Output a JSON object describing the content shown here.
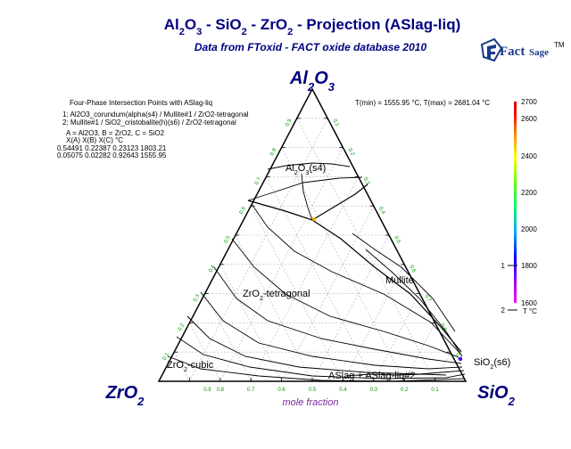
{
  "title": {
    "parts": [
      {
        "text": "Al",
        "sub": false
      },
      {
        "text": "2",
        "sub": true
      },
      {
        "text": "O",
        "sub": false
      },
      {
        "text": "3",
        "sub": true
      },
      {
        "text": " - SiO",
        "sub": false
      },
      {
        "text": "2",
        "sub": true
      },
      {
        "text": " - ZrO",
        "sub": false
      },
      {
        "text": "2",
        "sub": true
      },
      {
        "text": " -  Projection (ASlag-liq)",
        "sub": false
      }
    ]
  },
  "subtitle": "Data from FToxid - FACT oxide database 2010",
  "logo": {
    "word1": "Fact",
    "word2": "Sage",
    "mark": "TM"
  },
  "apex": {
    "top": [
      {
        "text": "Al",
        "sub": false
      },
      {
        "text": "2",
        "sub": true
      },
      {
        "text": "O",
        "sub": false
      },
      {
        "text": "3",
        "sub": true
      }
    ],
    "left": [
      {
        "text": "ZrO",
        "sub": false
      },
      {
        "text": "2",
        "sub": true
      }
    ],
    "right": [
      {
        "text": "SiO",
        "sub": false
      },
      {
        "text": "2",
        "sub": true
      }
    ]
  },
  "info": {
    "heading": "Four-Phase Intersection Points with ASlag-liq",
    "points": [
      "1:  Al2O3_corundum(alpha(s4) / Mullite#1 / ZrO2-tetragonal",
      "2:  Mullite#1 / SiO2_cristobalite(h)(s6) / ZrO2-tetragonal"
    ],
    "legend_line": "A = Al2O3,  B = ZrO2,  C = SiO2",
    "table_header": "X(A)        X(B)       X(C)        °C",
    "rows": [
      "0.54491  0.22387  0.23123  1803.21",
      "0.05075  0.02282  0.92643  1555.95"
    ]
  },
  "temp_range": "T(min) = 1555.95 °C,  T(max) = 2681.04 °C",
  "colorbar": {
    "ticks": [
      "2700",
      "2600",
      "2400",
      "2200",
      "2000",
      "1800",
      "1600"
    ],
    "unit": "T °C",
    "markers": [
      {
        "label": "1",
        "value": "1803.21"
      },
      {
        "label": "2",
        "value": "1555.95"
      }
    ],
    "colors": [
      "#ff00ff",
      "#9900ff",
      "#0000ff",
      "#00aaff",
      "#00ff66",
      "#66ff00",
      "#ffff00",
      "#ff8800",
      "#ff0000",
      "#cc0000"
    ]
  },
  "fields": {
    "al2o3": [
      {
        "text": "Al",
        "sub": false
      },
      {
        "text": "2",
        "sub": true
      },
      {
        "text": "O",
        "sub": false
      },
      {
        "text": "3",
        "sub": true
      },
      {
        "text": "(s4)",
        "sub": false
      }
    ],
    "zro2_tet": [
      {
        "text": "ZrO",
        "sub": false
      },
      {
        "text": "2",
        "sub": true
      },
      {
        "text": "-tetragonal",
        "sub": false
      }
    ],
    "mullite": "Mullite",
    "zro2_cubic": [
      {
        "text": "ZrO",
        "sub": false
      },
      {
        "text": "2",
        "sub": true
      },
      {
        "text": "-cubic",
        "sub": false
      }
    ],
    "sio2": [
      {
        "text": "SiO",
        "sub": false
      },
      {
        "text": "2",
        "sub": true
      },
      {
        "text": "(s6)",
        "sub": false
      }
    ],
    "aslag": "ASlag + ASlag-liq#2"
  },
  "axis_label": "mole fraction",
  "bottom_ticks": [
    "0.9",
    "0.8",
    "0.7",
    "0.6",
    "0.5",
    "0.4",
    "0.3",
    "0.2",
    "0.1"
  ],
  "left_ticks": [
    "0.9",
    "0.8",
    "0.7",
    "0.6",
    "0.5",
    "0.4",
    "0.3",
    "0.2",
    "0.1"
  ],
  "right_ticks": [
    "0.1",
    "0.2",
    "0.3",
    "0.4",
    "0.5",
    "0.6",
    "0.7",
    "0.8",
    "0.9"
  ],
  "invariant_points": [
    {
      "label": "1",
      "a": 0.54491,
      "b": 0.22387,
      "c": 0.23123,
      "t": 1803.21
    },
    {
      "label": "2",
      "a": 0.05075,
      "b": 0.02282,
      "c": 0.92643,
      "t": 1555.95
    }
  ]
}
